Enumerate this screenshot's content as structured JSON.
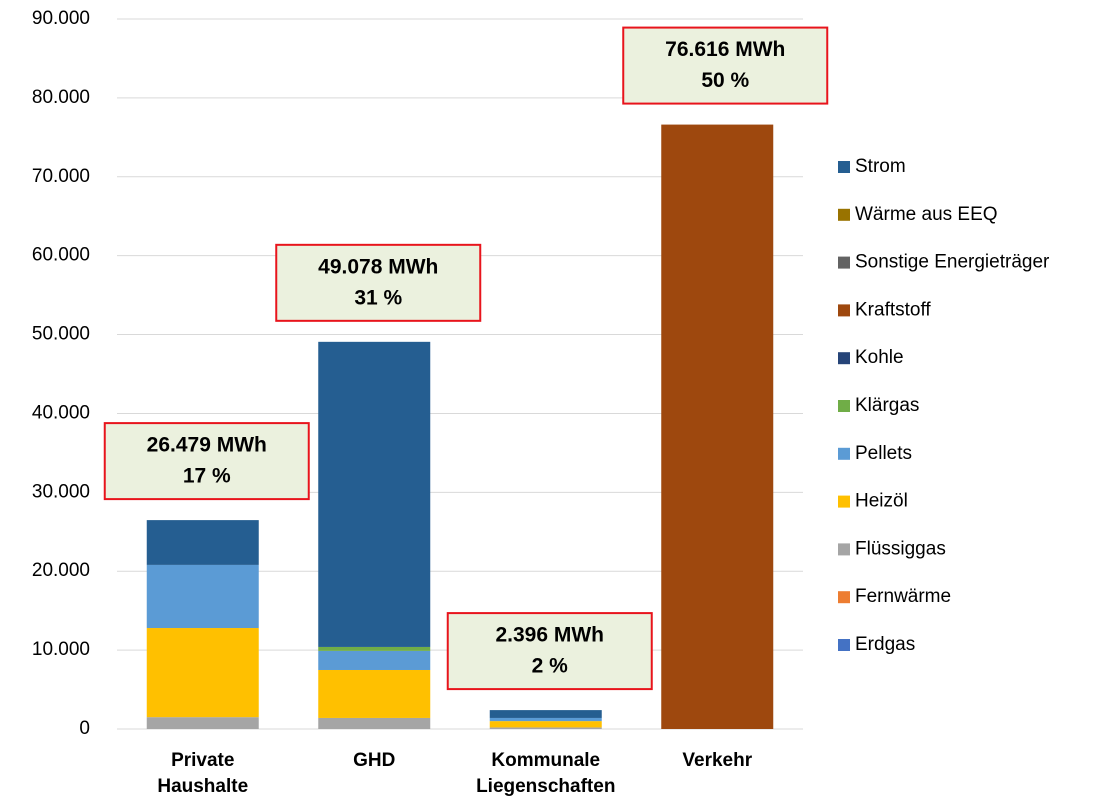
{
  "chart_data": {
    "type": "stacked_bar",
    "categories": [
      "Private Haushalte",
      "GHD",
      "Kommunale Liegenschaften",
      "Verkehr"
    ],
    "series": [
      {
        "name": "Erdgas",
        "color": "#4472c4",
        "values": [
          0,
          0,
          0,
          0
        ]
      },
      {
        "name": "Fernwärme",
        "color": "#ed7d31",
        "values": [
          0,
          0,
          0,
          0
        ]
      },
      {
        "name": "Flüssiggas",
        "color": "#a5a5a5",
        "values": [
          1500,
          1400,
          200,
          0
        ]
      },
      {
        "name": "Heizöl",
        "color": "#ffc000",
        "values": [
          11300,
          6080,
          800,
          0
        ]
      },
      {
        "name": "Pellets",
        "color": "#5b9bd5",
        "values": [
          8000,
          2420,
          400,
          0
        ]
      },
      {
        "name": "Klärgas",
        "color": "#70ad47",
        "values": [
          0,
          500,
          0,
          0
        ]
      },
      {
        "name": "Kohle",
        "color": "#264478",
        "values": [
          0,
          0,
          0,
          0
        ]
      },
      {
        "name": "Kraftstoff",
        "color": "#9e480e",
        "values": [
          0,
          0,
          0,
          76616
        ]
      },
      {
        "name": "Sonstige Energieträger",
        "color": "#636363",
        "values": [
          0,
          0,
          0,
          0
        ]
      },
      {
        "name": "Wärme aus EEQ",
        "color": "#997300",
        "values": [
          0,
          0,
          0,
          0
        ]
      },
      {
        "name": "Strom",
        "color": "#255e91",
        "values": [
          5679,
          38678,
          996,
          0
        ]
      }
    ],
    "annotations": [
      {
        "lines": [
          "26.479 MWh",
          "17 %"
        ]
      },
      {
        "lines": [
          "49.078 MWh",
          "31 %"
        ]
      },
      {
        "lines": [
          "2.396 MWh",
          "2 %"
        ]
      },
      {
        "lines": [
          "76.616 MWh",
          "50 %"
        ]
      }
    ],
    "ylim": [
      0,
      90000
    ],
    "yticks": [
      0,
      {
        "value": 10000,
        "label": "10.000"
      },
      {
        "value": 20000,
        "label": "20.000"
      },
      {
        "value": 30000,
        "label": "30.000"
      },
      {
        "value": 40000,
        "label": "40.000"
      },
      {
        "value": 50000,
        "label": "50.000"
      },
      {
        "value": 60000,
        "label": "60.000"
      },
      {
        "value": 70000,
        "label": "70.000"
      },
      {
        "value": 80000,
        "label": "80.000"
      },
      {
        "value": 90000,
        "label": "90.000"
      }
    ],
    "grid": true,
    "legend": "right"
  }
}
